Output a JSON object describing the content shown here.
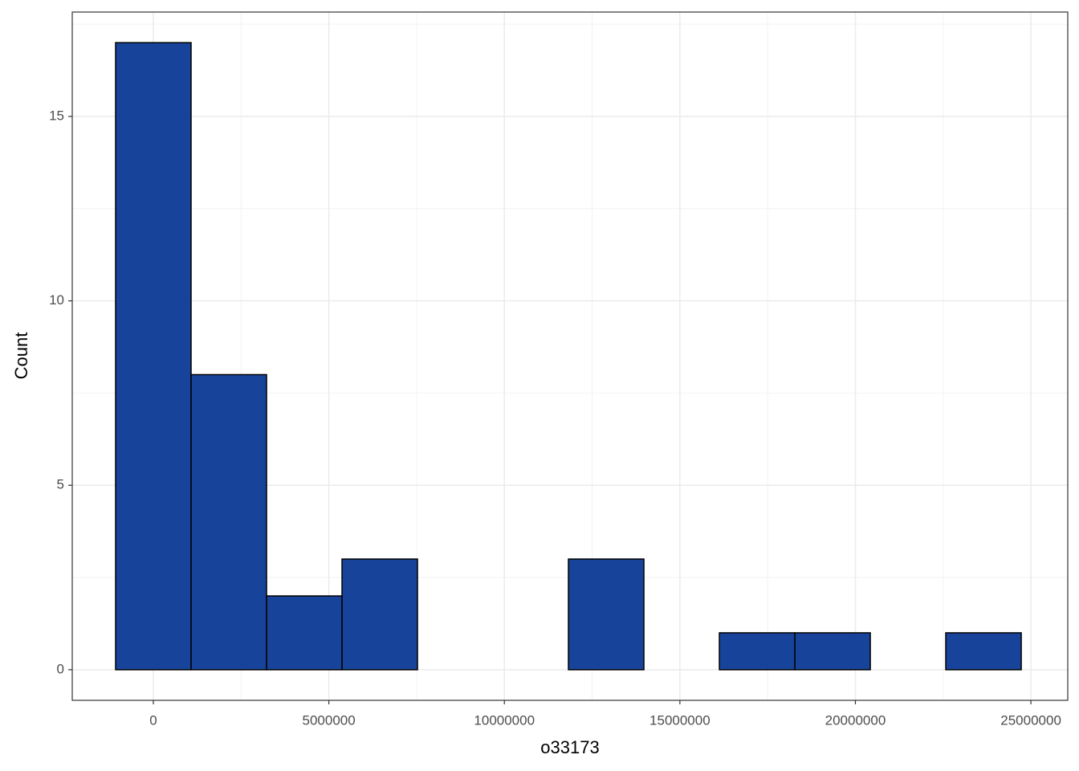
{
  "chart_data": {
    "type": "histogram",
    "x_label": "o33173",
    "y_label": "Count",
    "bins": [
      -1075000,
      1075000,
      3225000,
      5375000,
      7525000,
      9675000,
      11825000,
      13975000,
      16125000,
      18275000,
      20425000,
      22575000,
      24725000
    ],
    "counts": [
      17,
      8,
      2,
      3,
      0,
      0,
      3,
      0,
      1,
      1,
      0,
      1
    ],
    "color": "#17449a",
    "xlim": [
      -2310000,
      26050000
    ],
    "xticks": [
      0,
      5000000,
      10000000,
      15000000,
      20000000,
      25000000
    ],
    "ylim": [
      -0.83,
      17.83
    ],
    "yticks": [
      0,
      5,
      10,
      15
    ],
    "grid": true
  }
}
